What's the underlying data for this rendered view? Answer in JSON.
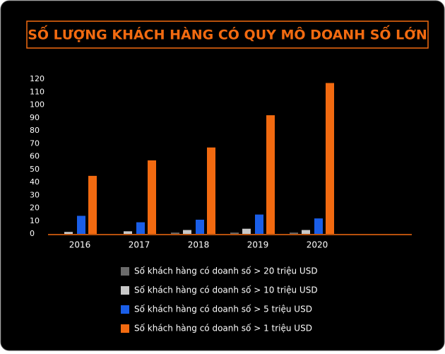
{
  "chart_data": {
    "type": "bar",
    "title": "SỐ LƯỢNG KHÁCH HÀNG CÓ QUY MÔ DOANH SỐ LỚN",
    "categories": [
      "2016",
      "2017",
      "2018",
      "2019",
      "2020"
    ],
    "series": [
      {
        "name": "Số khách hàng có doanh số > 20 triệu USD",
        "color": "#6b6b6b",
        "values": [
          0,
          0,
          1,
          1,
          1
        ]
      },
      {
        "name": "Số khách hàng có doanh số > 10 triệu USD",
        "color": "#c8c8c8",
        "values": [
          1.5,
          2,
          3,
          4,
          3
        ]
      },
      {
        "name": "Số khách hàng có doanh số > 5 triệu USD",
        "color": "#1a5ee8",
        "values": [
          14,
          9,
          11,
          15,
          12
        ]
      },
      {
        "name": "Số khách hàng có doanh số > 1 triệu USD",
        "color": "#f26a10",
        "values": [
          45,
          57,
          67,
          92,
          117
        ]
      }
    ],
    "ylim": [
      0,
      120
    ],
    "yticks": [
      0,
      10,
      20,
      30,
      40,
      50,
      60,
      70,
      80,
      90,
      100,
      110,
      120
    ],
    "grid": false
  }
}
